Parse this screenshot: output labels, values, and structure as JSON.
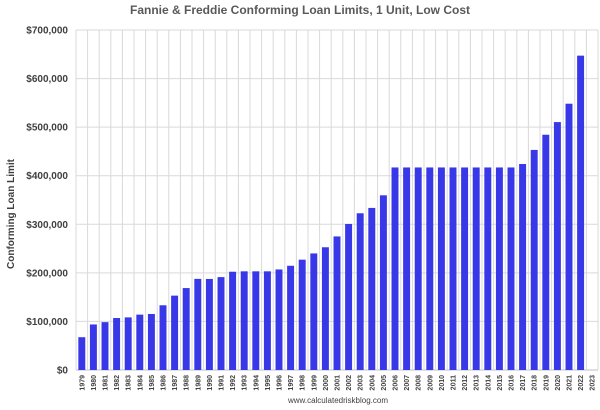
{
  "chart_data": {
    "type": "bar",
    "title": "Fannie & Freddie Conforming Loan Limits, 1 Unit, Low Cost",
    "xlabel": "",
    "ylabel": "Conforming Loan Limit",
    "ylim": [
      0,
      700000
    ],
    "yticks": [
      0,
      100000,
      200000,
      300000,
      400000,
      500000,
      600000,
      700000
    ],
    "ytick_labels": [
      "$0",
      "$100,000",
      "$200,000",
      "$300,000",
      "$400,000",
      "$500,000",
      "$600,000",
      "$700,000"
    ],
    "grid": true,
    "bar_color": "#3838e8",
    "categories": [
      "1979",
      "1980",
      "1981",
      "1982",
      "1983",
      "1984",
      "1985",
      "1986",
      "1987",
      "1988",
      "1989",
      "1990",
      "1991",
      "1992",
      "1993",
      "1994",
      "1995",
      "1996",
      "1997",
      "1998",
      "1999",
      "2000",
      "2001",
      "2002",
      "2003",
      "2004",
      "2005",
      "2006",
      "2007",
      "2008",
      "2009",
      "2010",
      "2011",
      "2012",
      "2013",
      "2014",
      "2015",
      "2016",
      "2017",
      "2018",
      "2019",
      "2020",
      "2021",
      "2022",
      "2023"
    ],
    "values": [
      67500,
      93750,
      98500,
      107000,
      108300,
      114000,
      115300,
      133250,
      153100,
      168700,
      187600,
      187450,
      191250,
      202300,
      203150,
      203150,
      203150,
      207000,
      214600,
      227150,
      240000,
      252700,
      275000,
      300700,
      322700,
      333700,
      359650,
      417000,
      417000,
      417000,
      417000,
      417000,
      417000,
      417000,
      417000,
      417000,
      417000,
      417000,
      424100,
      453100,
      484350,
      510400,
      548250,
      647200,
      null
    ],
    "source": "www.calculatedriskblog.com"
  }
}
